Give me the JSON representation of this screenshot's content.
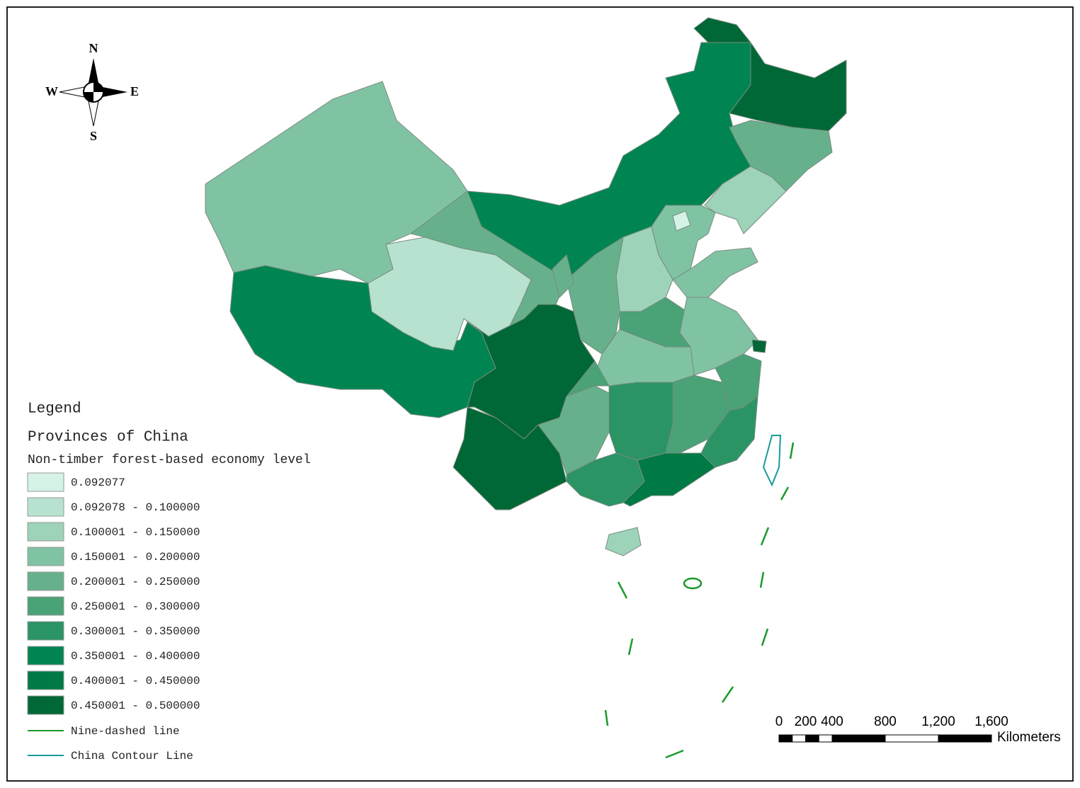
{
  "compass": {
    "north": "N",
    "south": "S",
    "east": "E",
    "west": "W"
  },
  "legend": {
    "title": "Legend",
    "layer": "Provinces of China",
    "field": "Non-timber forest-based economy level",
    "classes": [
      {
        "label": "0.092077",
        "color": "#d5f2e6"
      },
      {
        "label": "0.092078 - 0.100000",
        "color": "#b7e2cf"
      },
      {
        "label": "0.100001 - 0.150000",
        "color": "#9dd3b8"
      },
      {
        "label": "0.150001 - 0.200000",
        "color": "#80c3a3"
      },
      {
        "label": "0.200001 - 0.250000",
        "color": "#66b18b"
      },
      {
        "label": "0.250001 - 0.300000",
        "color": "#4aa277"
      },
      {
        "label": "0.300001 - 0.350000",
        "color": "#2a9465"
      },
      {
        "label": "0.350001 - 0.400000",
        "color": "#008552"
      },
      {
        "label": "0.400001 - 0.450000",
        "color": "#007a45"
      },
      {
        "label": "0.450001 - 0.500000",
        "color": "#006836"
      }
    ],
    "lines": [
      {
        "label": "Nine-dashed line",
        "color": "#1a9a2a"
      },
      {
        "label": "China Contour Line",
        "color": "#1a9a9a"
      }
    ]
  },
  "scale_bar": {
    "range": [
      0,
      1600
    ],
    "ticks": [
      0,
      200,
      400,
      800,
      {
        "value": 1200,
        "label": "1,200"
      },
      {
        "value": 1600,
        "label": "1,600"
      }
    ],
    "unit": "Kilometers"
  }
}
